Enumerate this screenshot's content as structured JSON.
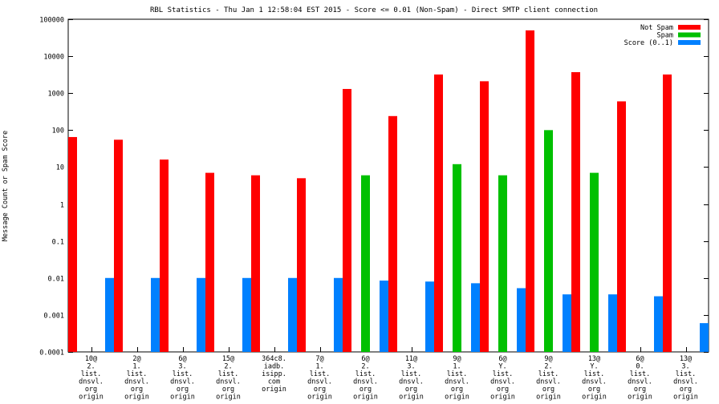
{
  "chart_data": {
    "type": "bar",
    "title": "RBL Statistics - Thu Jan  1 12:58:04 EST 2015 - Score <= 0.01 (Non-Spam) - Direct SMTP client connection",
    "ylabel": "Message Count or Spam Score",
    "xlabel": "",
    "yscale": "log",
    "ylim": [
      0.0001,
      100000
    ],
    "yticks": [
      "100000",
      "10000",
      "1000",
      "100",
      "10",
      "1",
      "0.1",
      "0.01",
      "0.001",
      "0.0001"
    ],
    "legend_position": "top-right",
    "grid": false,
    "categories": [
      [
        "10@",
        "2.",
        "list.",
        "dnsvl.",
        "org",
        "origin"
      ],
      [
        "2@",
        "1.",
        "list.",
        "dnsvl.",
        "org",
        "origin"
      ],
      [
        "6@",
        "3.",
        "list.",
        "dnsvl.",
        "org",
        "origin"
      ],
      [
        "15@",
        "2.",
        "list.",
        "dnsvl.",
        "org",
        "origin"
      ],
      [
        "364c8.",
        "iadb.",
        "isipp.",
        "com",
        "origin"
      ],
      [
        "7@",
        "1.",
        "list.",
        "dnsvl.",
        "org",
        "origin"
      ],
      [
        "6@",
        "2.",
        "list.",
        "dnsvl.",
        "org",
        "origin"
      ],
      [
        "11@",
        "3.",
        "list.",
        "dnsvl.",
        "org",
        "origin"
      ],
      [
        "9@",
        "1.",
        "list.",
        "dnsvl.",
        "org",
        "origin"
      ],
      [
        "6@",
        "Y.",
        "list.",
        "dnsvl.",
        "org",
        "origin"
      ],
      [
        "9@",
        "2.",
        "list.",
        "dnsvl.",
        "org",
        "origin"
      ],
      [
        "13@",
        "Y.",
        "list.",
        "dnsvl.",
        "org",
        "origin"
      ],
      [
        "6@",
        "0.",
        "list.",
        "dnsvl.",
        "org",
        "origin"
      ],
      [
        "13@",
        "3.",
        "list.",
        "dnsvl.",
        "org",
        "origin"
      ]
    ],
    "series": [
      {
        "name": "Not Spam",
        "color": "#ff0000",
        "values": [
          65,
          55,
          16,
          7,
          6,
          5,
          1300,
          240,
          3200,
          2100,
          50000,
          3700,
          600,
          3200
        ]
      },
      {
        "name": "Spam",
        "color": "#00c000",
        "values": [
          null,
          null,
          null,
          null,
          null,
          null,
          6,
          null,
          12,
          6,
          100,
          7,
          null,
          null
        ]
      },
      {
        "name": "Score (0..1)",
        "color": "#0080ff",
        "values": [
          0.01,
          0.01,
          0.01,
          0.01,
          0.01,
          0.01,
          0.0085,
          0.008,
          0.0072,
          0.0053,
          0.0036,
          0.0036,
          0.0032,
          0.0006
        ]
      }
    ]
  }
}
